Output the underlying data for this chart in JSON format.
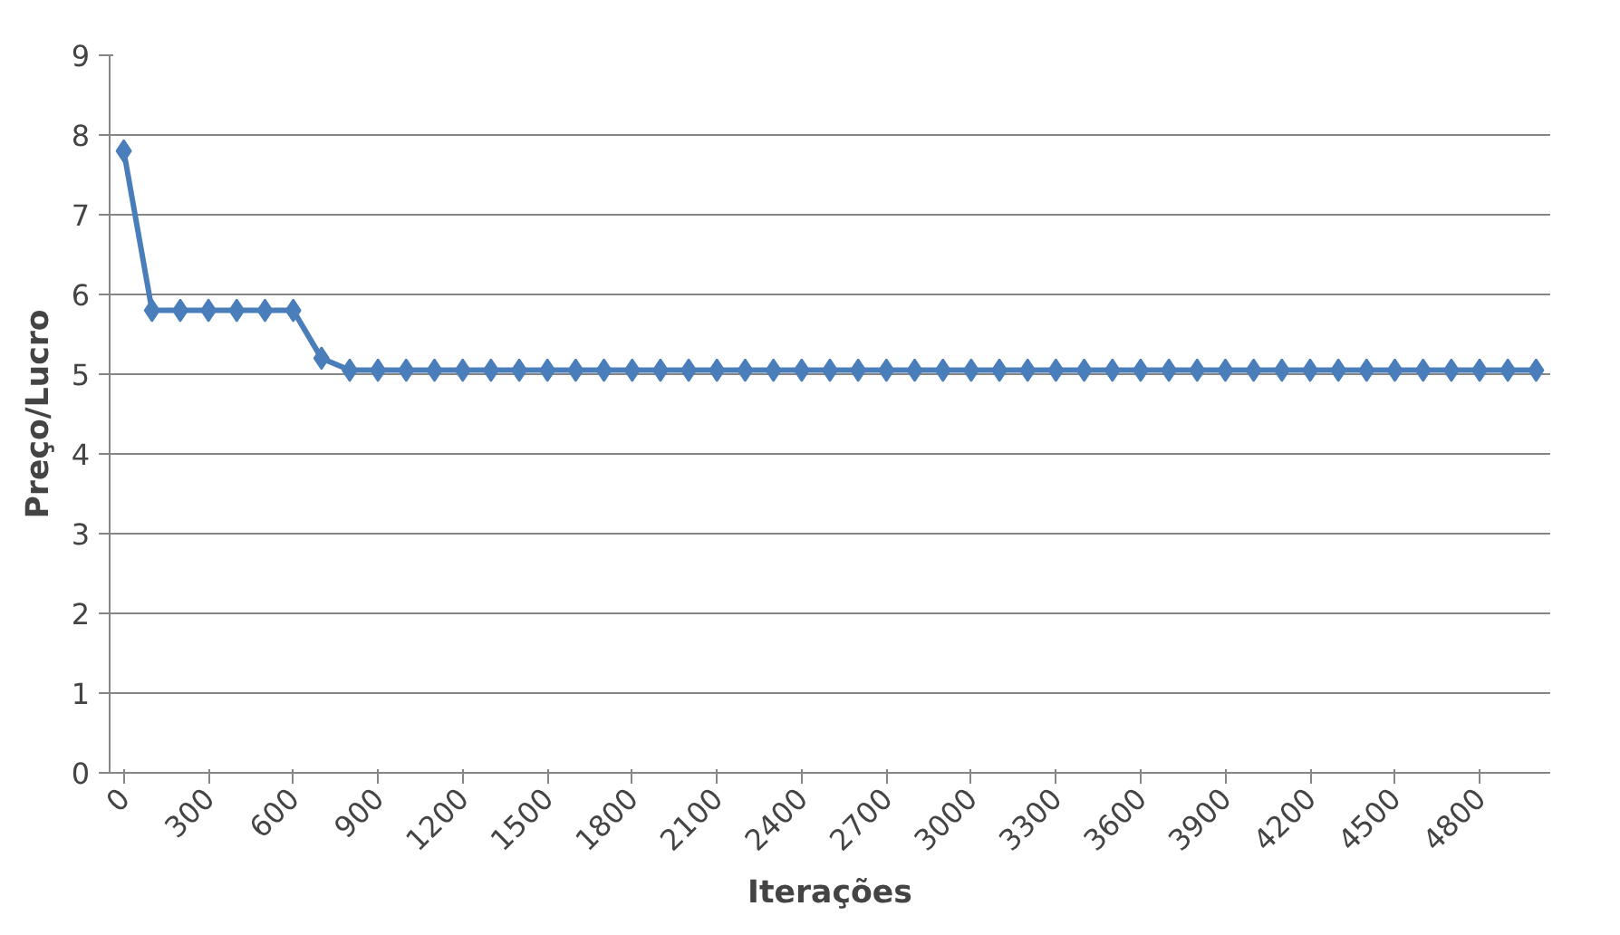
{
  "chart_data": {
    "type": "line",
    "xlabel": "Iterações",
    "ylabel": "Preço/Lucro",
    "categories": [
      "0",
      null,
      null,
      "300",
      null,
      null,
      "600",
      null,
      null,
      "900",
      null,
      null,
      "1200",
      null,
      null,
      "1500",
      null,
      null,
      "1800",
      null,
      null,
      "2100",
      null,
      null,
      "2400",
      null,
      null,
      "2700",
      null,
      null,
      "3000",
      null,
      null,
      "3300",
      null,
      null,
      "3600",
      null,
      null,
      "3900",
      null,
      null,
      "4200",
      null,
      null,
      "4500",
      null,
      null,
      "4800",
      null,
      null
    ],
    "series": [
      {
        "color": "#4a7ebb",
        "values": [
          7.8,
          5.8,
          5.8,
          5.8,
          5.8,
          5.8,
          5.8,
          5.2,
          5.05,
          5.05,
          5.05,
          5.05,
          5.05,
          5.05,
          5.05,
          5.05,
          5.05,
          5.05,
          5.05,
          5.05,
          5.05,
          5.05,
          5.05,
          5.05,
          5.05,
          5.05,
          5.05,
          5.05,
          5.05,
          5.05,
          5.05,
          5.05,
          5.05,
          5.05,
          5.05,
          5.05,
          5.05,
          5.05,
          5.05,
          5.05,
          5.05,
          5.05,
          5.05,
          5.05,
          5.05,
          5.05,
          5.05,
          5.05,
          5.05,
          5.05,
          5.05
        ]
      }
    ],
    "ylim": [
      0,
      9
    ],
    "yticks": [
      0,
      1,
      2,
      3,
      4,
      5,
      6,
      7,
      8,
      9
    ],
    "grid": "y",
    "marker": "diamond",
    "line_style": "solid"
  }
}
